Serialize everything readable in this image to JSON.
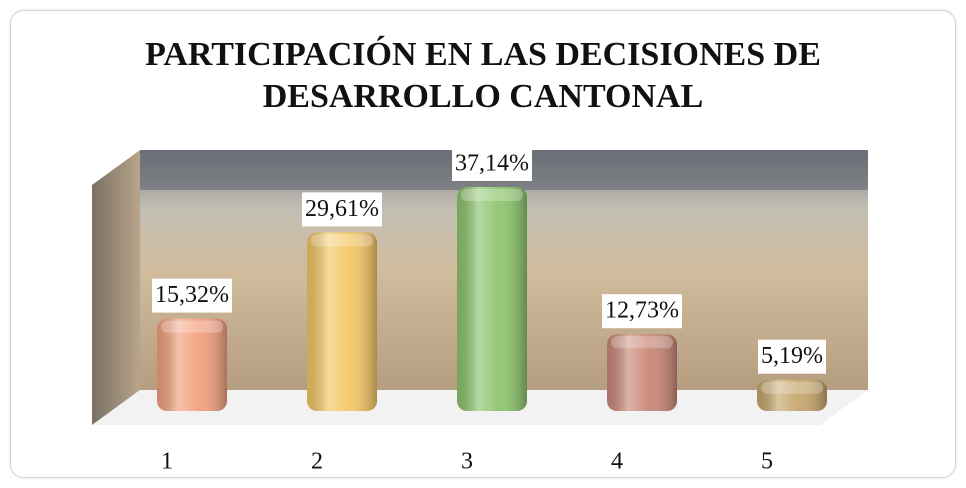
{
  "chart_data": {
    "type": "bar3d",
    "title": "PARTICIPACIÓN EN LAS DECISIONES DE DESARROLLO CANTONAL",
    "categories": [
      "1",
      "2",
      "3",
      "4",
      "5"
    ],
    "values": [
      15.32,
      29.61,
      37.14,
      12.73,
      5.19
    ],
    "value_labels": [
      "15,32%",
      "29,61%",
      "37,14%",
      "12,73%",
      "5,19%"
    ],
    "colors": [
      "#f2a07e",
      "#f4c766",
      "#8cc46c",
      "#c98878",
      "#c6a66c"
    ]
  }
}
